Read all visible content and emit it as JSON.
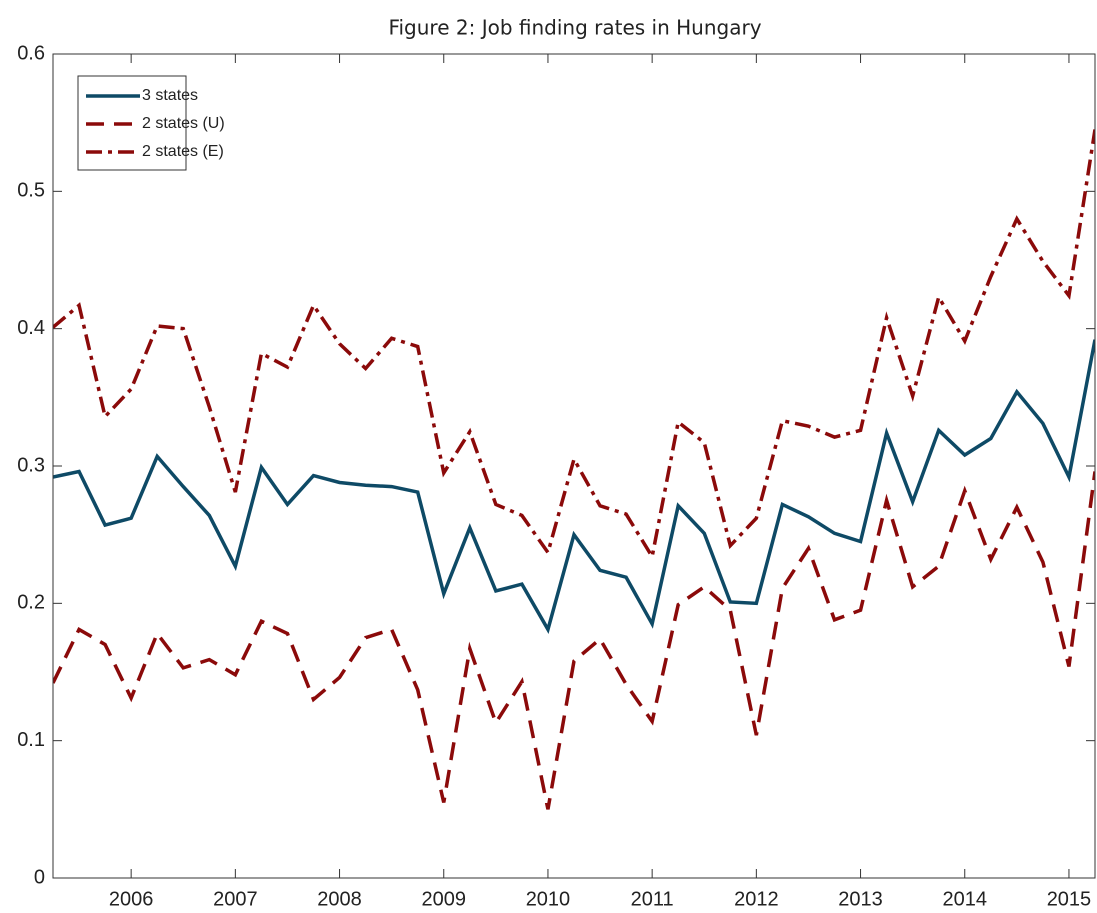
{
  "chart_data": {
    "type": "line",
    "title": "Figure 2: Job finding rates in Hungary",
    "x": [
      2005.25,
      2005.5,
      2005.75,
      2006,
      2006.25,
      2006.5,
      2006.75,
      2007,
      2007.25,
      2007.5,
      2007.75,
      2008,
      2008.25,
      2008.5,
      2008.75,
      2009,
      2009.25,
      2009.5,
      2009.75,
      2010,
      2010.25,
      2010.5,
      2010.75,
      2011,
      2011.25,
      2011.5,
      2011.75,
      2012,
      2012.25,
      2012.5,
      2012.75,
      2013,
      2013.25,
      2013.5,
      2013.75,
      2014,
      2014.25,
      2014.5,
      2014.75,
      2015,
      2015.25
    ],
    "xlim": [
      2005.25,
      2015.25
    ],
    "xticks": [
      2006,
      2007,
      2008,
      2009,
      2010,
      2011,
      2012,
      2013,
      2014,
      2015
    ],
    "ylim": [
      0,
      0.6
    ],
    "yticks": [
      0,
      0.1,
      0.2,
      0.3,
      0.4,
      0.5,
      0.6
    ],
    "legend": "upper left",
    "series": [
      {
        "name": "3 states",
        "color": "#0e4a66",
        "dash": "solid",
        "values": [
          0.292,
          0.296,
          0.257,
          0.262,
          0.307,
          0.285,
          0.264,
          0.227,
          0.299,
          0.272,
          0.293,
          0.288,
          0.286,
          0.285,
          0.281,
          0.207,
          0.255,
          0.209,
          0.214,
          0.181,
          0.25,
          0.224,
          0.219,
          0.185,
          0.271,
          0.251,
          0.201,
          0.2,
          0.272,
          0.263,
          0.251,
          0.245,
          0.324,
          0.274,
          0.326,
          0.308,
          0.32,
          0.354,
          0.331,
          0.292,
          0.392
        ]
      },
      {
        "name": "2 states (U)",
        "color": "#8b0a0a",
        "dash": "dashed",
        "values": [
          0.142,
          0.181,
          0.17,
          0.131,
          0.178,
          0.153,
          0.159,
          0.148,
          0.187,
          0.178,
          0.13,
          0.146,
          0.175,
          0.181,
          0.137,
          0.055,
          0.167,
          0.113,
          0.143,
          0.05,
          0.158,
          0.174,
          0.141,
          0.114,
          0.199,
          0.212,
          0.195,
          0.104,
          0.211,
          0.24,
          0.188,
          0.195,
          0.275,
          0.212,
          0.227,
          0.282,
          0.232,
          0.27,
          0.23,
          0.154,
          0.296
        ]
      },
      {
        "name": "2 states (E)",
        "color": "#8b0a0a",
        "dash": "dashdot",
        "values": [
          0.401,
          0.417,
          0.336,
          0.356,
          0.402,
          0.4,
          0.343,
          0.281,
          0.382,
          0.372,
          0.417,
          0.389,
          0.371,
          0.393,
          0.387,
          0.295,
          0.325,
          0.272,
          0.264,
          0.237,
          0.305,
          0.271,
          0.265,
          0.234,
          0.332,
          0.317,
          0.242,
          0.262,
          0.333,
          0.329,
          0.321,
          0.326,
          0.408,
          0.351,
          0.423,
          0.391,
          0.438,
          0.48,
          0.449,
          0.424,
          0.545
        ]
      }
    ]
  }
}
